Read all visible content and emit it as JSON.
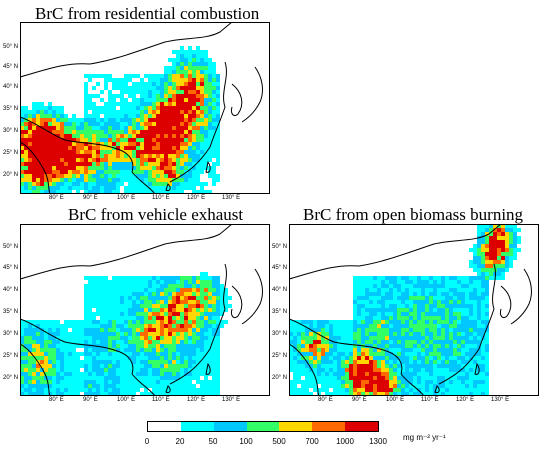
{
  "panels": [
    {
      "id": "residential",
      "title": "BrC from residential combustion",
      "lat_labels": [
        "50° N",
        "45° N",
        "40° N",
        "35° N",
        "30° N",
        "25° N",
        "20° N"
      ],
      "lon_labels": [
        "80° E",
        "90° E",
        "100° E",
        "110° E",
        "120° E",
        "130° E"
      ]
    },
    {
      "id": "vehicle",
      "title": "BrC from vehicle exhaust",
      "lat_labels": [
        "50° N",
        "45° N",
        "40° N",
        "35° N",
        "30° N",
        "25° N",
        "20° N"
      ],
      "lon_labels": [
        "80° E",
        "90° E",
        "100° E",
        "110° E",
        "120° E",
        "130° E"
      ]
    },
    {
      "id": "biomass",
      "title": "BrC from open biomass burning",
      "lat_labels": [
        "50° N",
        "45° N",
        "40° N",
        "35° N",
        "30° N",
        "25° N",
        "20° N"
      ],
      "lon_labels": [
        "80° E",
        "90° E",
        "100° E",
        "110° E",
        "120° E",
        "130° E"
      ]
    }
  ],
  "colorbar": {
    "colors": [
      "#ffffff",
      "#00ffff",
      "#00c8ff",
      "#33ff66",
      "#ffd700",
      "#ff6a00",
      "#dd0000"
    ],
    "ticks": [
      "0",
      "20",
      "50",
      "100",
      "500",
      "700",
      "1000",
      "1300"
    ],
    "unit": "mg m⁻² yr⁻¹"
  },
  "chart_data": {
    "type": "heatmap",
    "series": [
      {
        "name": "BrC from residential combustion"
      },
      {
        "name": "BrC from vehicle exhaust"
      },
      {
        "name": "BrC from open biomass burning"
      }
    ],
    "color_levels": [
      0,
      20,
      50,
      100,
      500,
      700,
      1000,
      1300
    ],
    "lon_ticks": [
      80,
      90,
      100,
      110,
      120,
      130
    ],
    "lat_ticks": [
      20,
      25,
      30,
      35,
      40,
      45,
      50
    ]
  }
}
